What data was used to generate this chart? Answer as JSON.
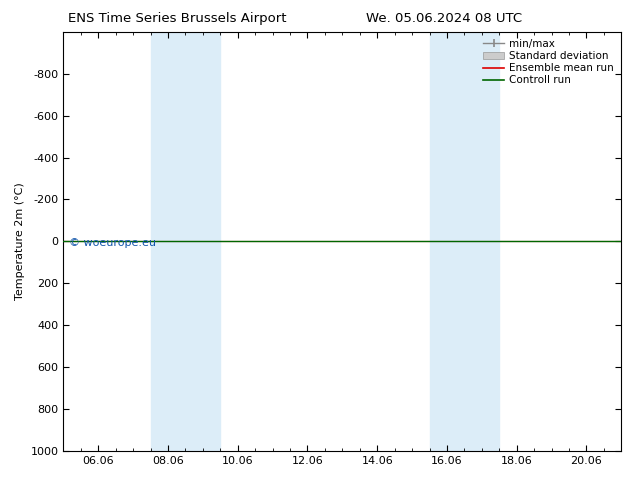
{
  "title": "ENS Time Series Brussels Airport",
  "title2": "We. 05.06.2024 08 UTC",
  "ylabel": "Temperature 2m (°C)",
  "ylim_bottom": -1000,
  "ylim_top": 1000,
  "yticks": [
    -800,
    -600,
    -400,
    -200,
    0,
    200,
    400,
    600,
    800,
    1000
  ],
  "xtick_labels": [
    "06.06",
    "08.06",
    "10.06",
    "12.06",
    "14.06",
    "16.06",
    "18.06",
    "20.06"
  ],
  "xtick_positions": [
    1,
    3,
    5,
    7,
    9,
    11,
    13,
    15
  ],
  "xlim": [
    0,
    16
  ],
  "shaded_bands": [
    {
      "x_start": 2.5,
      "x_end": 4.5
    },
    {
      "x_start": 10.5,
      "x_end": 12.5
    }
  ],
  "shaded_color": "#dcedf8",
  "control_run_y": 0,
  "ensemble_mean_y": 0,
  "watermark": "© woeurope.eu",
  "legend_labels": [
    "min/max",
    "Standard deviation",
    "Ensemble mean run",
    "Controll run"
  ],
  "legend_line_color": "#888888",
  "legend_std_color": "#cccccc",
  "ensemble_color": "#dd0000",
  "control_color": "#006600",
  "background_color": "#ffffff",
  "plot_bg": "#ffffff",
  "title_fontsize": 9.5,
  "axis_fontsize": 8,
  "legend_fontsize": 7.5
}
